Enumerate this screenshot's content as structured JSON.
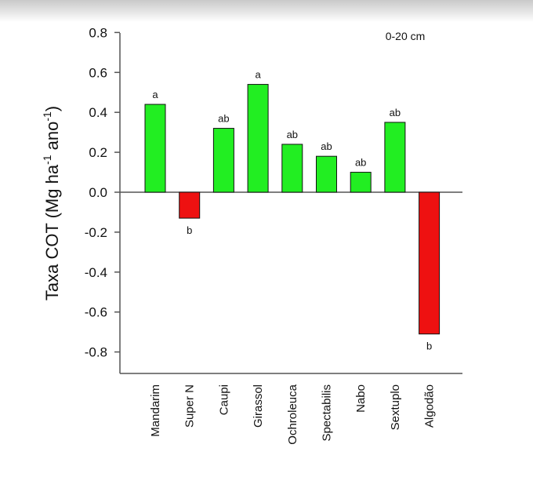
{
  "chart_data": {
    "type": "bar",
    "title": "",
    "annotation": "0-20 cm",
    "ylabel": {
      "prefix": "Taxa COT (Mg ha",
      "sup1": "-1",
      "middle": " ano",
      "sup2": "-1",
      "suffix": ")"
    },
    "xlabel": "",
    "ylim": [
      -0.9,
      0.8
    ],
    "yticks": [
      0.8,
      0.6,
      0.4,
      0.2,
      0.0,
      -0.2,
      -0.4,
      -0.6,
      -0.8
    ],
    "ytick_labels": [
      "0.8",
      "0.6",
      "0.4",
      "0.2",
      "0.0",
      "-0.2",
      "-0.4",
      "-0.6",
      "-0.8"
    ],
    "categories": [
      "Mandarim",
      "Super N",
      "Caupi",
      "Girassol",
      "Ochroleuca",
      "Spectabilis",
      "Nabo",
      "Sextuplo",
      "Algodão"
    ],
    "values": [
      0.44,
      -0.13,
      0.32,
      0.54,
      0.24,
      0.18,
      0.1,
      0.35,
      -0.71
    ],
    "significance": [
      "a",
      "b",
      "ab",
      "a",
      "ab",
      "ab",
      "ab",
      "ab",
      "b"
    ],
    "colors": {
      "positive": "#22ee22",
      "negative": "#ee1111",
      "stroke": "#111111",
      "axis": "#555555"
    }
  }
}
